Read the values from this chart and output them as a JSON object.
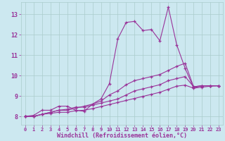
{
  "title": "",
  "xlabel": "Windchill (Refroidissement éolien,°C)",
  "bg_color": "#cce8f0",
  "grid_color": "#aacccc",
  "line_color": "#993399",
  "xlim": [
    -0.5,
    23.5
  ],
  "ylim": [
    7.6,
    13.6
  ],
  "xticks": [
    0,
    1,
    2,
    3,
    4,
    5,
    6,
    7,
    8,
    9,
    10,
    11,
    12,
    13,
    14,
    15,
    16,
    17,
    18,
    19,
    20,
    21,
    22,
    23
  ],
  "yticks": [
    8,
    9,
    10,
    11,
    12,
    13
  ],
  "series": [
    [
      8.0,
      8.05,
      8.3,
      8.3,
      8.5,
      8.5,
      8.3,
      8.25,
      8.6,
      8.85,
      9.6,
      11.8,
      12.6,
      12.65,
      12.2,
      12.25,
      11.7,
      13.35,
      11.5,
      10.35,
      9.4,
      9.5,
      9.5,
      9.5
    ],
    [
      8.0,
      8.0,
      8.1,
      8.2,
      8.3,
      8.35,
      8.45,
      8.45,
      8.55,
      8.65,
      8.75,
      8.85,
      9.05,
      9.25,
      9.35,
      9.45,
      9.55,
      9.75,
      9.85,
      9.95,
      9.45,
      9.5,
      9.5,
      9.5
    ],
    [
      8.0,
      8.0,
      8.1,
      8.2,
      8.3,
      8.3,
      8.4,
      8.5,
      8.6,
      8.75,
      9.05,
      9.25,
      9.55,
      9.75,
      9.85,
      9.95,
      10.05,
      10.25,
      10.45,
      10.6,
      9.45,
      9.5,
      9.5,
      9.5
    ],
    [
      8.0,
      8.0,
      8.1,
      8.15,
      8.2,
      8.2,
      8.28,
      8.3,
      8.38,
      8.48,
      8.58,
      8.68,
      8.78,
      8.88,
      8.98,
      9.08,
      9.18,
      9.33,
      9.48,
      9.53,
      9.38,
      9.43,
      9.48,
      9.5
    ]
  ]
}
